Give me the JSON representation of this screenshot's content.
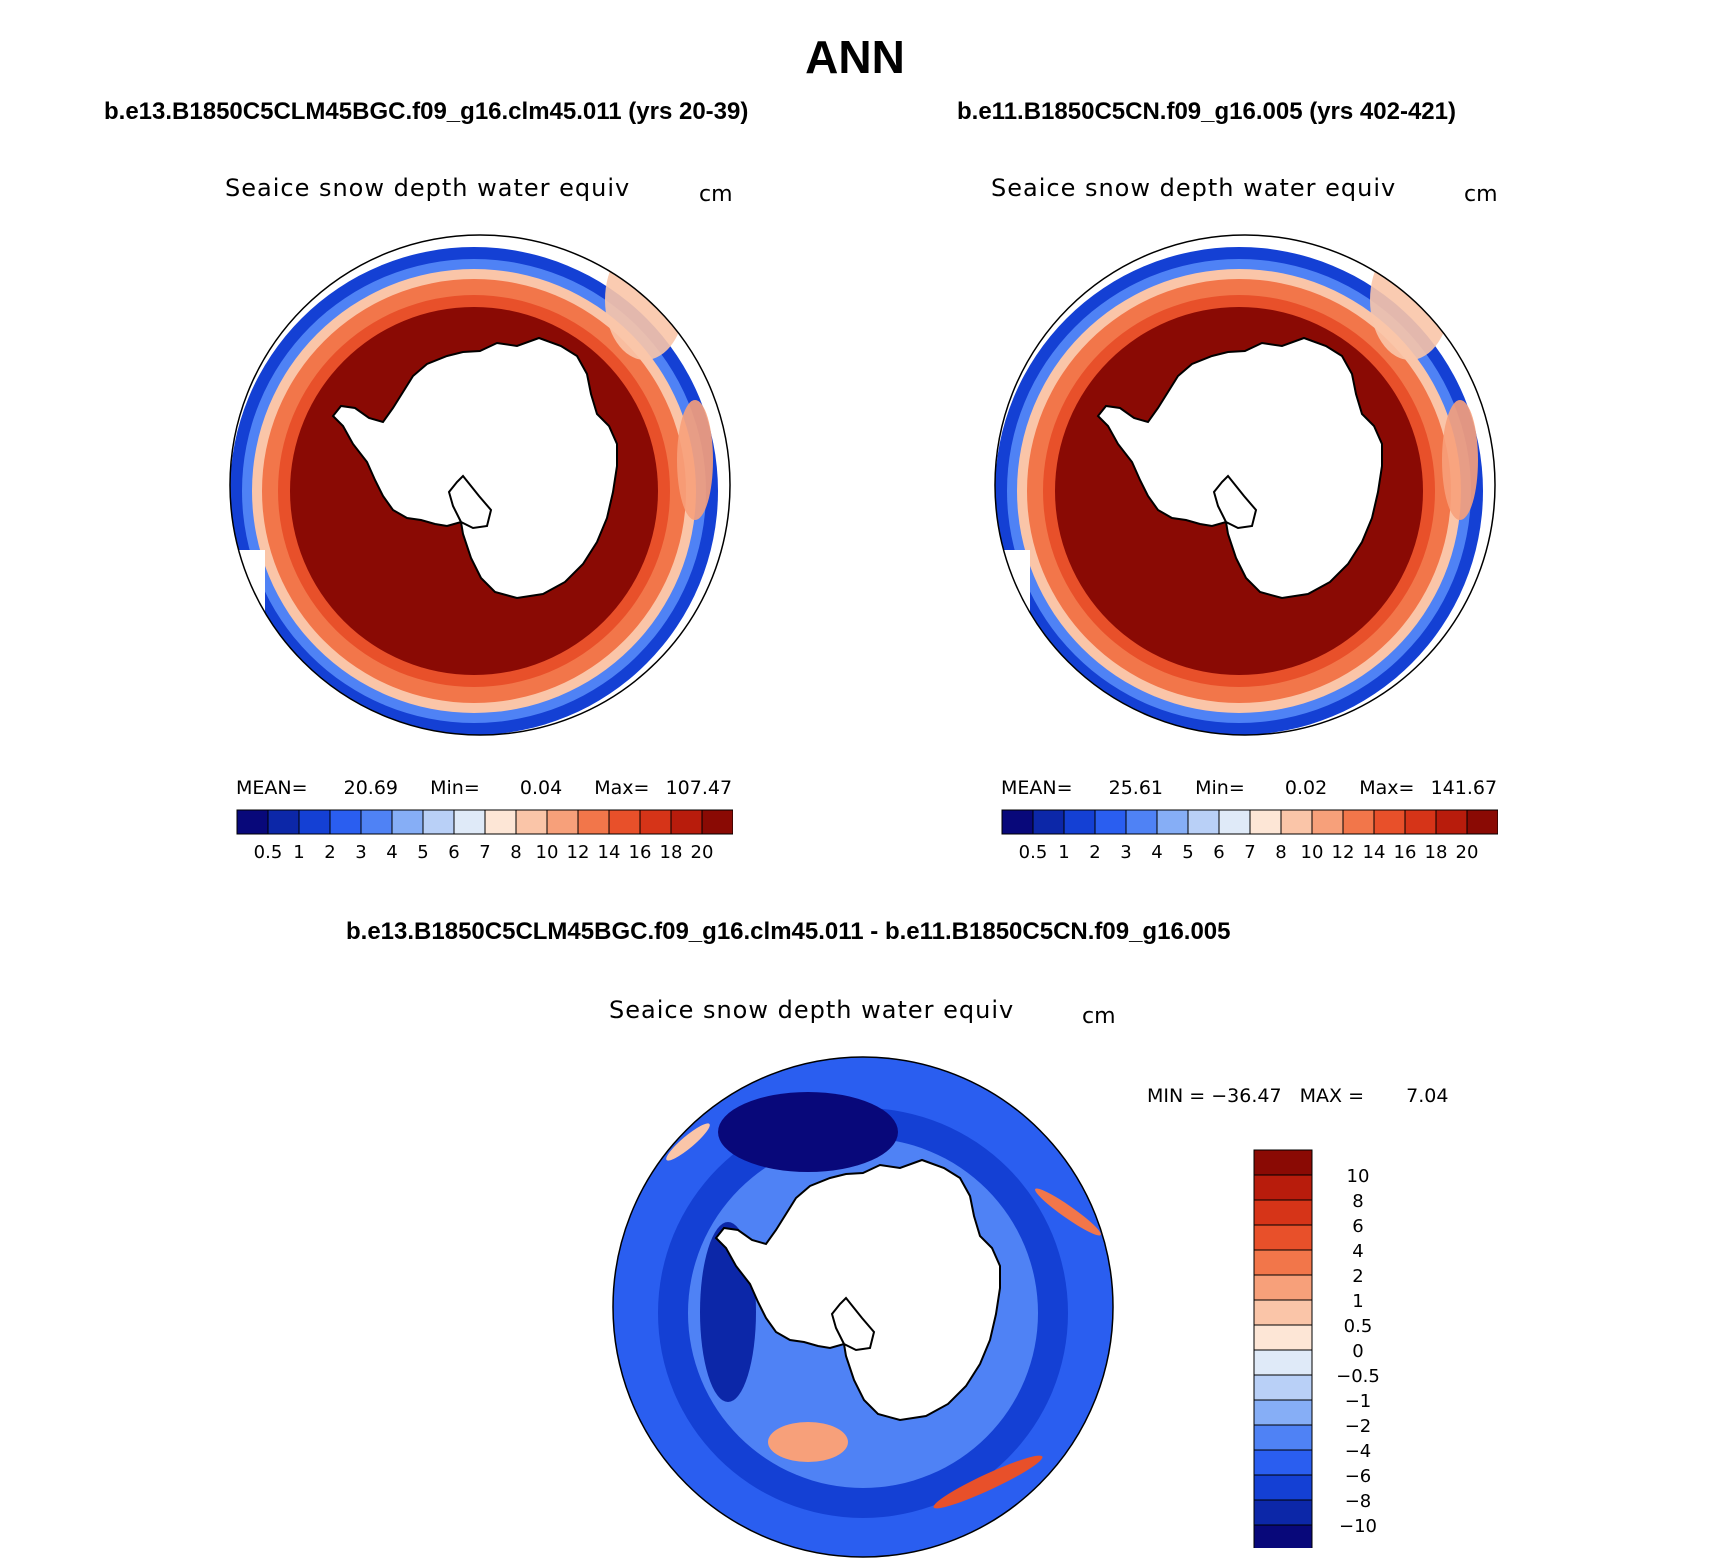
{
  "main_title": "ANN",
  "panels": [
    {
      "case_title": "b.e13.B1850C5CLM45BGC.f09_g16.clm45.011 (yrs 20-39)",
      "plot_title": "Seaice snow depth water equiv",
      "units": "cm",
      "stats": {
        "mean_label": "MEAN=",
        "mean": "20.69",
        "min_label": "Min=",
        "min": "0.04",
        "max_label": "Max=",
        "max": "107.47"
      }
    },
    {
      "case_title": "b.e11.B1850C5CN.f09_g16.005 (yrs 402-421)",
      "plot_title": "Seaice snow depth water equiv",
      "units": "cm",
      "stats": {
        "mean_label": "MEAN=",
        "mean": "25.61",
        "min_label": "Min=",
        "min": "0.02",
        "max_label": "Max=",
        "max": "141.67"
      }
    },
    {
      "case_title": "b.e13.B1850C5CLM45BGC.f09_g16.clm45.011 - b.e11.B1850C5CN.f09_g16.005",
      "plot_title": "Seaice snow depth water equiv",
      "units": "cm",
      "stats": {
        "min_label": "MIN =",
        "min": "−36.47",
        "max_label": "MAX =",
        "max": "7.04"
      }
    }
  ],
  "colorbar_abs": {
    "labels": [
      "0.5",
      "1",
      "2",
      "3",
      "4",
      "5",
      "6",
      "7",
      "8",
      "10",
      "12",
      "14",
      "16",
      "18",
      "20"
    ],
    "colors": [
      "#08087a",
      "#0c27a8",
      "#1440d4",
      "#2a5ef0",
      "#4f82f5",
      "#86aef6",
      "#b9d0f7",
      "#dfeaf8",
      "#fde6d6",
      "#fac5a8",
      "#f7a07a",
      "#f2764a",
      "#e8502a",
      "#d63418",
      "#b81c0c",
      "#8a0a04"
    ]
  },
  "colorbar_diff": {
    "labels": [
      "10",
      "8",
      "6",
      "4",
      "2",
      "1",
      "0.5",
      "0",
      "−0.5",
      "−1",
      "−2",
      "−4",
      "−6",
      "−8",
      "−10"
    ],
    "colors": [
      "#8a0a04",
      "#b81c0c",
      "#d63418",
      "#e8502a",
      "#f2764a",
      "#f7a07a",
      "#fac5a8",
      "#fde6d6",
      "#dfeaf8",
      "#b9d0f7",
      "#86aef6",
      "#4f82f5",
      "#2a5ef0",
      "#1440d4",
      "#0c27a8",
      "#08087a"
    ]
  },
  "map_colors": {
    "ocean": "#ffffff",
    "land": "#ffffff",
    "coast": "#000000",
    "rim": "#1440d4"
  }
}
